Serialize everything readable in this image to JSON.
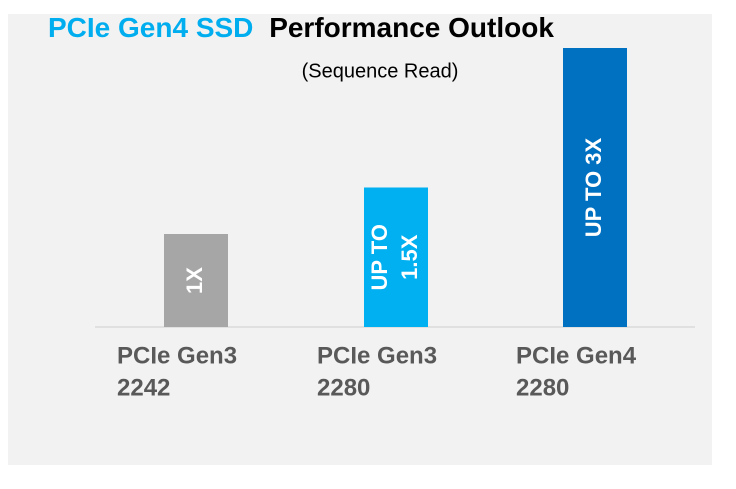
{
  "chart_data": {
    "type": "bar",
    "title": [
      {
        "text": "PCIe Gen4 SSD",
        "color": "#00aeef"
      },
      {
        "text": "Performance Outlook",
        "color": "#000000"
      }
    ],
    "subtitle": "(Sequence Read)",
    "categories": [
      [
        "PCIe Gen3",
        "2242"
      ],
      [
        "PCIe Gen3",
        "2280"
      ],
      [
        "PCIe Gen4",
        "2280"
      ]
    ],
    "values": [
      1,
      1.5,
      3
    ],
    "value_labels": [
      [
        "1X"
      ],
      [
        "UP TO",
        "1.5X"
      ],
      [
        "UP TO 3X"
      ]
    ],
    "colors": [
      "#a6a6a6",
      "#00b0f0",
      "#0070c0"
    ],
    "ylim": [
      0,
      3
    ]
  }
}
